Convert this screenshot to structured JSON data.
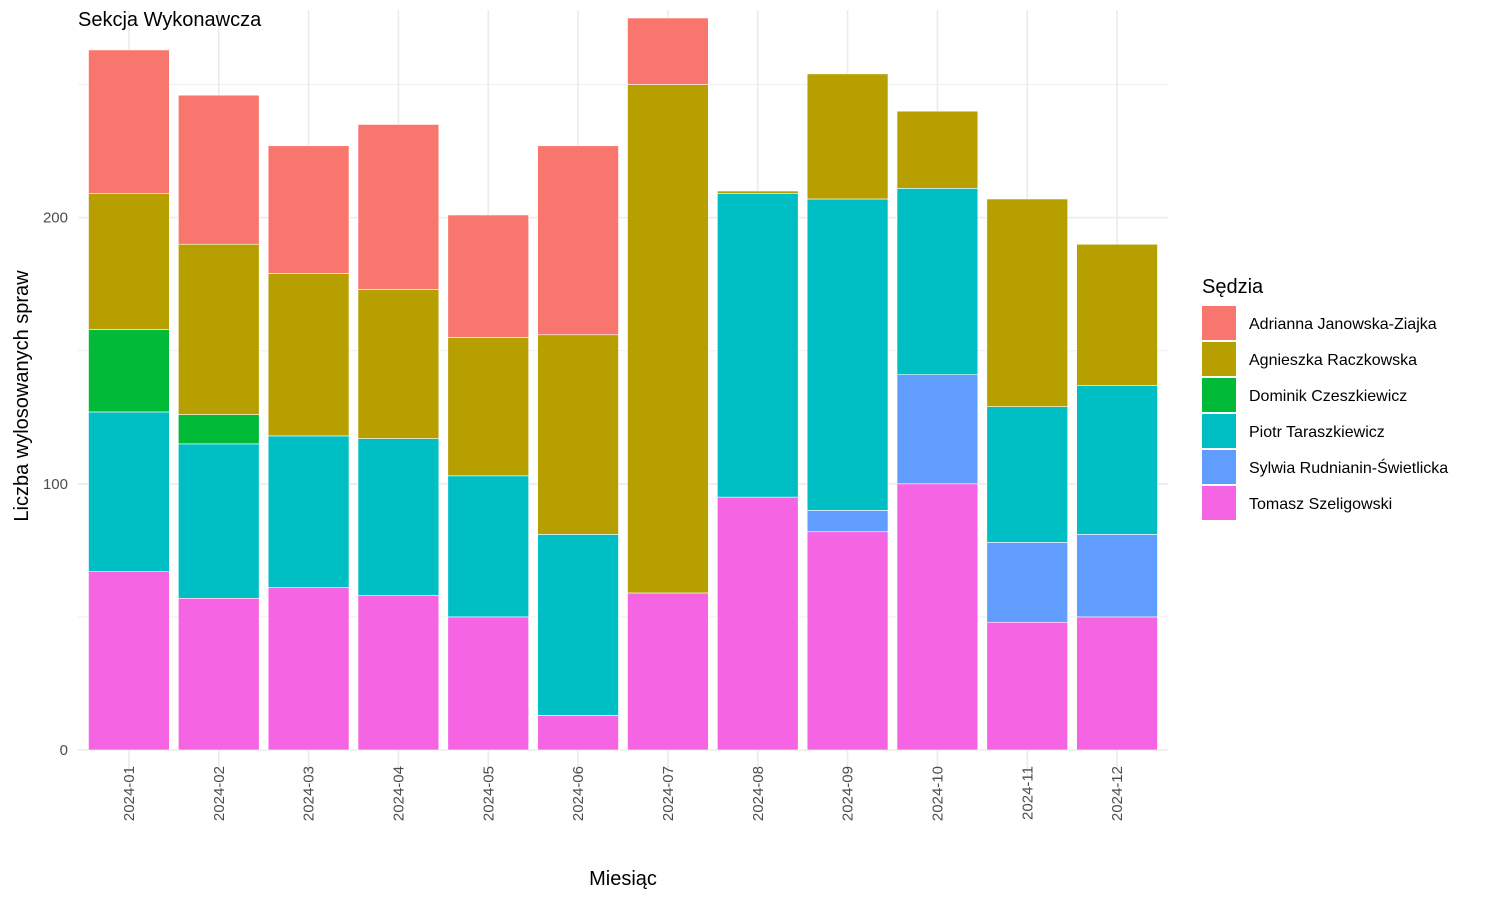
{
  "chart_data": {
    "type": "bar",
    "stacked": true,
    "title": "Sekcja Wykonawcza",
    "xlabel": "Miesiąc",
    "ylabel": "Liczba wylosowanych spraw",
    "ylim": [
      0,
      278
    ],
    "yticks": [
      0,
      100,
      200
    ],
    "grid": true,
    "legend_placement": "right",
    "legend_title": "Sędzia",
    "categories": [
      "2024-01",
      "2024-02",
      "2024-03",
      "2024-04",
      "2024-05",
      "2024-06",
      "2024-07",
      "2024-08",
      "2024-09",
      "2024-10",
      "2024-11",
      "2024-12"
    ],
    "series": [
      {
        "name": "Tomasz Szeligowski",
        "color": "#F564E3",
        "values": [
          67,
          57,
          61,
          58,
          50,
          13,
          59,
          95,
          82,
          100,
          48,
          50
        ]
      },
      {
        "name": "Sylwia Rudnianin-Świetlicka",
        "color": "#619CFF",
        "values": [
          0,
          0,
          0,
          0,
          0,
          0,
          0,
          0,
          8,
          41,
          30,
          31
        ]
      },
      {
        "name": "Piotr Taraszkiewicz",
        "color": "#00BFC4",
        "values": [
          60,
          58,
          57,
          59,
          53,
          68,
          0,
          114,
          117,
          70,
          51,
          56
        ]
      },
      {
        "name": "Dominik Czeszkiewicz",
        "color": "#00BA38",
        "values": [
          31,
          11,
          0,
          0,
          0,
          0,
          0,
          0,
          0,
          0,
          0,
          0
        ]
      },
      {
        "name": "Agnieszka Raczkowska",
        "color": "#B79F00",
        "values": [
          51,
          64,
          61,
          56,
          52,
          75,
          191,
          1,
          47,
          29,
          78,
          53
        ]
      },
      {
        "name": "Adrianna Janowska-Ziajka",
        "color": "#F8766D",
        "values": [
          54,
          56,
          48,
          62,
          46,
          71,
          25,
          0,
          0,
          0,
          0,
          0
        ]
      }
    ],
    "legend_order": [
      "Adrianna Janowska-Ziajka",
      "Agnieszka Raczkowska",
      "Dominik Czeszkiewicz",
      "Piotr Taraszkiewicz",
      "Sylwia Rudnianin-Świetlicka",
      "Tomasz Szeligowski"
    ]
  }
}
